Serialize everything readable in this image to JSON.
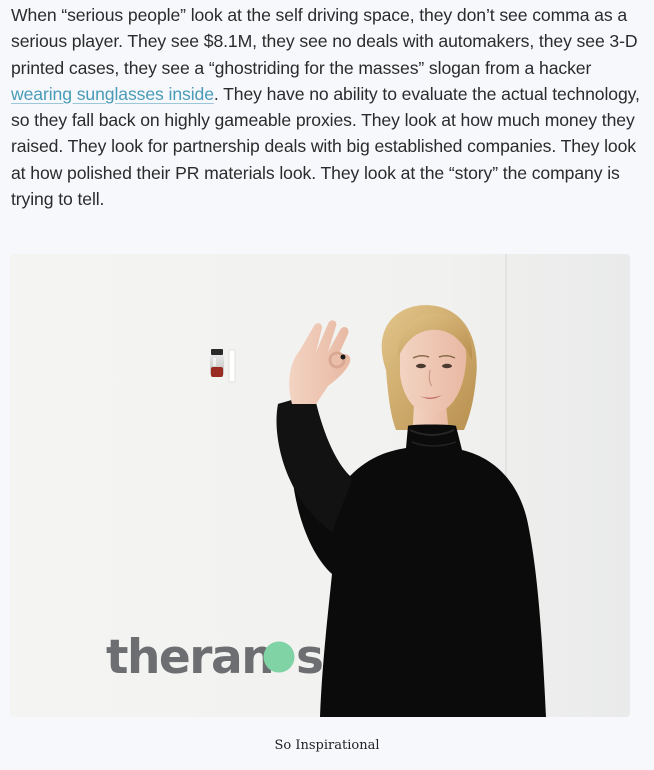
{
  "article": {
    "paragraph": {
      "before_link": "When “serious people” look at the self driving space, they don’t see comma as a serious player. They see $8.1M, they see no deals with automakers, they see 3-D printed cases, they see a “ghostriding for the masses” slogan from a hacker ",
      "link_text": "wearing sunglasses inside",
      "after_link": ". They have no ability to evaluate the actual technology, so they fall back on highly gameable proxies. They look at how much money they raised. They look for partnership deals with big established companies. They look at how polished their PR materials look. They look at the “story” the company is trying to tell."
    },
    "figure": {
      "logo_text_left": "theran",
      "logo_text_right": "s",
      "caption": "So Inspirational"
    }
  },
  "colors": {
    "background": "#f6f8fb",
    "text": "#2b2b2b",
    "link": "#4a9bb8",
    "logo_gray": "#6d6e71",
    "logo_green": "#7fd3a4"
  }
}
